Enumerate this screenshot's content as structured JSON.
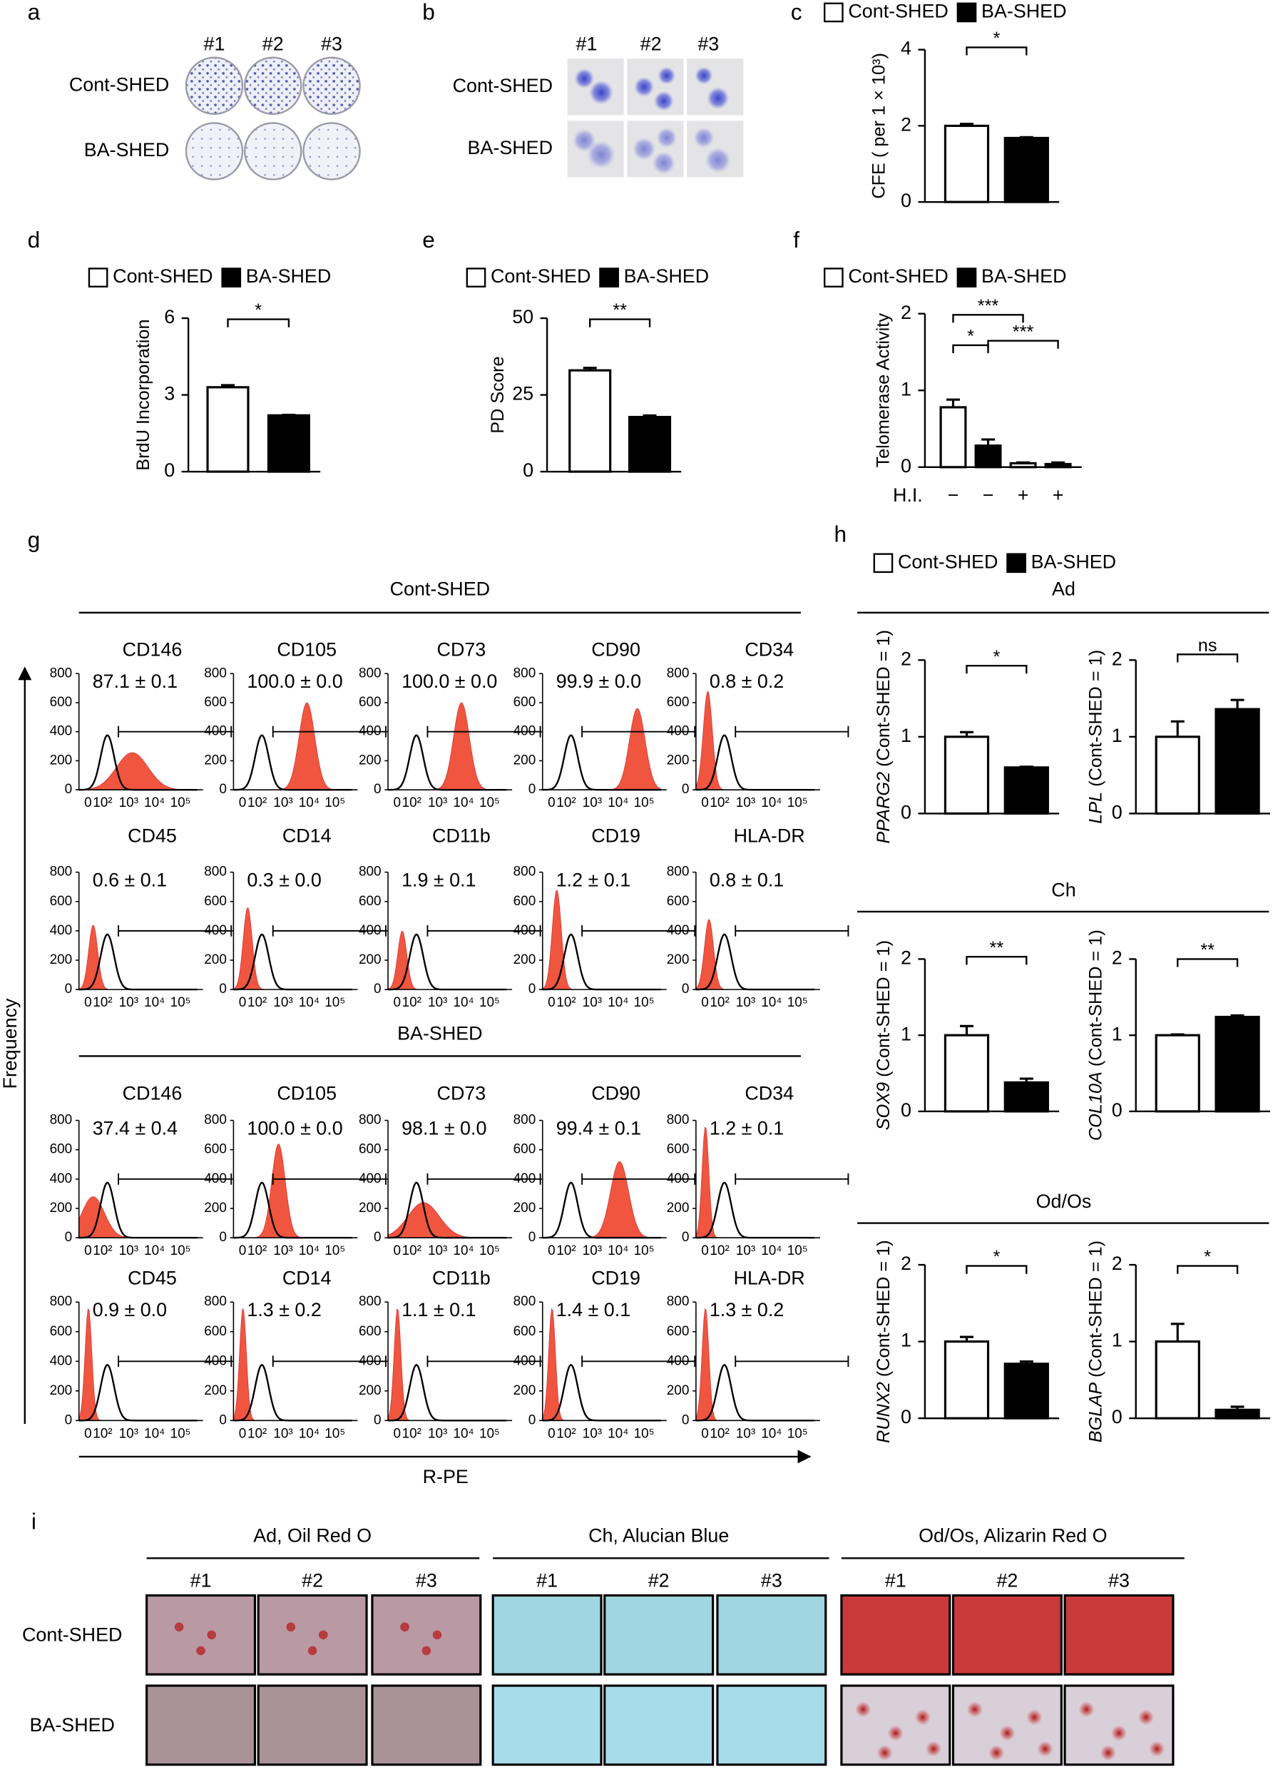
{
  "panel_labels": [
    "a",
    "b",
    "c",
    "d",
    "e",
    "f",
    "g",
    "h",
    "i"
  ],
  "panel_a": {
    "columns": [
      "#1",
      "#2",
      "#3"
    ],
    "rows": [
      "Cont-SHED",
      "BA-SHED"
    ]
  },
  "panel_b": {
    "columns": [
      "#1",
      "#2",
      "#3"
    ],
    "rows": [
      "Cont-SHED",
      "BA-SHED"
    ]
  },
  "chart_data": [
    {
      "type": "bar",
      "ylabel": "CFE ( per 1 × 10³)",
      "ylim": [
        0,
        4
      ],
      "yticks": [
        0,
        2,
        4
      ],
      "legend": true,
      "series": [
        {
          "name": "Cont-SHED",
          "color": "#ffffff",
          "values": [
            2.0
          ],
          "errors": [
            0.05
          ]
        },
        {
          "name": "BA-SHED",
          "color": "#000000",
          "values": [
            1.68
          ],
          "errors": [
            0.02
          ]
        }
      ],
      "significance": [
        "*"
      ]
    },
    {
      "type": "bar",
      "ylabel": "BrdU Incorporation",
      "ylim": [
        0,
        6
      ],
      "yticks": [
        0,
        3,
        6
      ],
      "legend": true,
      "series": [
        {
          "name": "Cont-SHED",
          "color": "#ffffff",
          "values": [
            3.3
          ],
          "errors": [
            0.08
          ]
        },
        {
          "name": "BA-SHED",
          "color": "#000000",
          "values": [
            2.2
          ],
          "errors": [
            0.02
          ]
        }
      ],
      "significance": [
        "*"
      ]
    },
    {
      "type": "bar",
      "ylabel": "PD Score",
      "ylim": [
        0,
        50
      ],
      "yticks": [
        0,
        25,
        50
      ],
      "legend": true,
      "series": [
        {
          "name": "Cont-SHED",
          "color": "#ffffff",
          "values": [
            33
          ],
          "errors": [
            0.8
          ]
        },
        {
          "name": "BA-SHED",
          "color": "#000000",
          "values": [
            17.8
          ],
          "errors": [
            0.5
          ]
        }
      ],
      "significance": [
        "**"
      ]
    },
    {
      "type": "bar",
      "ylabel": "Telomerase Activity",
      "ylim": [
        0,
        2
      ],
      "yticks": [
        0,
        1,
        2
      ],
      "legend": true,
      "xlabel": "H.I.",
      "categories": [
        "−",
        "+"
      ],
      "series": [
        {
          "name": "Cont-SHED",
          "color": "#ffffff",
          "values": [
            0.78,
            0.05
          ],
          "errors": [
            0.1,
            0.01
          ]
        },
        {
          "name": "BA-SHED",
          "color": "#000000",
          "values": [
            0.28,
            0.04
          ],
          "errors": [
            0.08,
            0.02
          ]
        }
      ],
      "significance": [
        "*",
        "***",
        "***"
      ]
    },
    {
      "type": "bar",
      "ylabel_gene": "PPARG2",
      "ylabel": " (Cont-SHED = 1)",
      "ylim": [
        0,
        2
      ],
      "yticks": [
        0,
        1,
        2
      ],
      "legend": true,
      "series": [
        {
          "name": "Cont-SHED",
          "color": "#ffffff",
          "values": [
            1.0
          ],
          "errors": [
            0.06
          ]
        },
        {
          "name": "BA-SHED",
          "color": "#000000",
          "values": [
            0.6
          ],
          "errors": [
            0.01
          ]
        }
      ],
      "significance": [
        "*"
      ]
    },
    {
      "type": "bar",
      "ylabel_gene": "LPL",
      "ylabel": " (Cont-SHED = 1)",
      "ylim": [
        0,
        2
      ],
      "yticks": [
        0,
        1,
        2
      ],
      "legend": false,
      "series": [
        {
          "name": "Cont-SHED",
          "color": "#ffffff",
          "values": [
            1.0
          ],
          "errors": [
            0.2
          ]
        },
        {
          "name": "BA-SHED",
          "color": "#000000",
          "values": [
            1.36
          ],
          "errors": [
            0.12
          ]
        }
      ],
      "significance": [
        "ns"
      ]
    },
    {
      "type": "bar",
      "ylabel_gene": "SOX9",
      "ylabel": " (Cont-SHED = 1)",
      "ylim": [
        0,
        2
      ],
      "yticks": [
        0,
        1,
        2
      ],
      "legend": false,
      "series": [
        {
          "name": "Cont-SHED",
          "color": "#ffffff",
          "values": [
            1.0
          ],
          "errors": [
            0.12
          ]
        },
        {
          "name": "BA-SHED",
          "color": "#000000",
          "values": [
            0.38
          ],
          "errors": [
            0.05
          ]
        }
      ],
      "significance": [
        "**"
      ]
    },
    {
      "type": "bar",
      "ylabel_gene": "COL10A",
      "ylabel": " (Cont-SHED = 1)",
      "ylim": [
        0,
        2
      ],
      "yticks": [
        0,
        1,
        2
      ],
      "legend": false,
      "series": [
        {
          "name": "Cont-SHED",
          "color": "#ffffff",
          "values": [
            1.0
          ],
          "errors": [
            0.01
          ]
        },
        {
          "name": "BA-SHED",
          "color": "#000000",
          "values": [
            1.24
          ],
          "errors": [
            0.02
          ]
        }
      ],
      "significance": [
        "**"
      ]
    },
    {
      "type": "bar",
      "ylabel_gene": "RUNX2",
      "ylabel": " (Cont-SHED = 1)",
      "ylim": [
        0,
        2
      ],
      "yticks": [
        0,
        1,
        2
      ],
      "legend": false,
      "series": [
        {
          "name": "Cont-SHED",
          "color": "#ffffff",
          "values": [
            1.0
          ],
          "errors": [
            0.06
          ]
        },
        {
          "name": "BA-SHED",
          "color": "#000000",
          "values": [
            0.71
          ],
          "errors": [
            0.03
          ]
        }
      ],
      "significance": [
        "*"
      ]
    },
    {
      "type": "bar",
      "ylabel_gene": "BGLAP",
      "ylabel": " (Cont-SHED = 1)",
      "ylim": [
        0,
        2
      ],
      "yticks": [
        0,
        1,
        2
      ],
      "legend": false,
      "series": [
        {
          "name": "Cont-SHED",
          "color": "#ffffff",
          "values": [
            1.0
          ],
          "errors": [
            0.23
          ]
        },
        {
          "name": "BA-SHED",
          "color": "#000000",
          "values": [
            0.11
          ],
          "errors": [
            0.04
          ]
        }
      ],
      "significance": [
        "*"
      ]
    }
  ],
  "panel_g": {
    "ylabel": "Frequency",
    "xlabel": "R-PE",
    "ylim": [
      0,
      800
    ],
    "yticks": [
      0,
      200,
      400,
      600,
      800
    ],
    "xtick_labels": [
      "0",
      "10²",
      "10³",
      "10⁴",
      "10⁵"
    ],
    "groups": [
      {
        "title": "Cont-SHED",
        "rows": [
          [
            {
              "marker": "CD146",
              "stat": "87.1 ± 0.1"
            },
            {
              "marker": "CD105",
              "stat": "100.0 ± 0.0"
            },
            {
              "marker": "CD73",
              "stat": "100.0 ± 0.0"
            },
            {
              "marker": "CD90",
              "stat": "99.9 ± 0.0"
            },
            {
              "marker": "CD34",
              "stat": "0.8 ± 0.2"
            }
          ],
          [
            {
              "marker": "CD45",
              "stat": "0.6 ± 0.1"
            },
            {
              "marker": "CD14",
              "stat": "0.3 ± 0.0"
            },
            {
              "marker": "CD11b",
              "stat": "1.9 ± 0.1"
            },
            {
              "marker": "CD19",
              "stat": "1.2 ± 0.1"
            },
            {
              "marker": "HLA-DR",
              "stat": "0.8 ± 0.1"
            }
          ]
        ]
      },
      {
        "title": "BA-SHED",
        "rows": [
          [
            {
              "marker": "CD146",
              "stat": "37.4 ± 0.4"
            },
            {
              "marker": "CD105",
              "stat": "100.0 ± 0.0"
            },
            {
              "marker": "CD73",
              "stat": "98.1 ± 0.0"
            },
            {
              "marker": "CD90",
              "stat": "99.4 ± 0.1"
            },
            {
              "marker": "CD34",
              "stat": "1.2 ± 0.1"
            }
          ],
          [
            {
              "marker": "CD45",
              "stat": "0.9 ± 0.0"
            },
            {
              "marker": "CD14",
              "stat": "1.3 ± 0.2"
            },
            {
              "marker": "CD11b",
              "stat": "1.1 ± 0.1"
            },
            {
              "marker": "CD19",
              "stat": "1.4 ± 0.1"
            },
            {
              "marker": "HLA-DR",
              "stat": "1.3 ± 0.2"
            }
          ]
        ]
      }
    ]
  },
  "panel_h_sections": [
    "Ad",
    "Ch",
    "Od/Os"
  ],
  "panel_i": {
    "groups": [
      {
        "title": "Ad, Oil Red O",
        "columns": [
          "#1",
          "#2",
          "#3"
        ]
      },
      {
        "title": "Ch, Alucian Blue",
        "columns": [
          "#1",
          "#2",
          "#3"
        ]
      },
      {
        "title": "Od/Os, Alizarin Red O",
        "columns": [
          "#1",
          "#2",
          "#3"
        ]
      }
    ],
    "rows": [
      "Cont-SHED",
      "BA-SHED"
    ]
  }
}
